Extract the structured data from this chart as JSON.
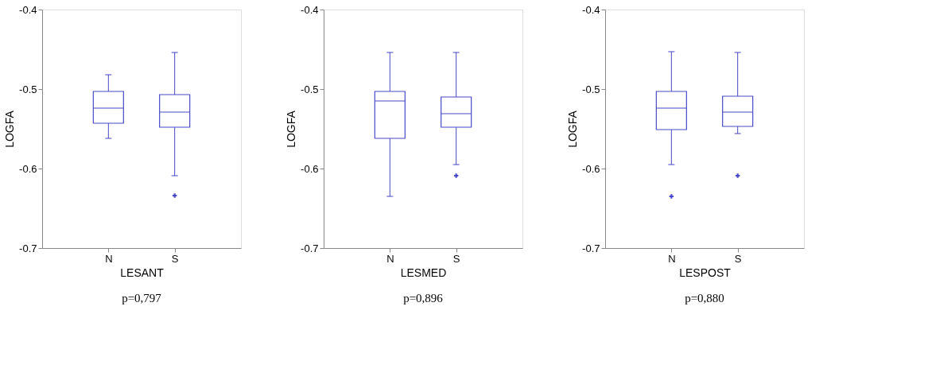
{
  "chart_data": [
    {
      "type": "box",
      "xlabel": "LESANT",
      "ylabel": "LOGFA",
      "categories": [
        "N",
        "S"
      ],
      "ylim": [
        -0.7,
        -0.4
      ],
      "yticks": [
        -0.7,
        -0.6,
        -0.5,
        -0.4
      ],
      "grid": false,
      "annotations": [
        "p=0,797"
      ],
      "series": [
        {
          "color": "#4a4ac8",
          "boxes": [
            {
              "low": -0.562,
              "q1": -0.543,
              "median": -0.524,
              "q3": -0.503,
              "high": -0.482
            },
            {
              "low": -0.609,
              "q1": -0.548,
              "median": -0.529,
              "q3": -0.507,
              "high": -0.454,
              "outliers": [
                -0.634
              ]
            }
          ]
        }
      ]
    },
    {
      "type": "box",
      "xlabel": "LESMED",
      "ylabel": "LOGFA",
      "categories": [
        "N",
        "S"
      ],
      "ylim": [
        -0.7,
        -0.4
      ],
      "yticks": [
        -0.7,
        -0.6,
        -0.5,
        -0.4
      ],
      "grid": false,
      "annotations": [
        "p=0,896"
      ],
      "series": [
        {
          "color": "#4a4ac8",
          "boxes": [
            {
              "low": -0.635,
              "q1": -0.562,
              "median": -0.515,
              "q3": -0.503,
              "high": -0.454
            },
            {
              "low": -0.595,
              "q1": -0.548,
              "median": -0.531,
              "q3": -0.51,
              "high": -0.454,
              "outliers": [
                -0.609
              ]
            }
          ]
        }
      ]
    },
    {
      "type": "box",
      "xlabel": "LESPOST",
      "ylabel": "LOGFA",
      "categories": [
        "N",
        "S"
      ],
      "ylim": [
        -0.7,
        -0.4
      ],
      "yticks": [
        -0.7,
        -0.6,
        -0.5,
        -0.4
      ],
      "grid": false,
      "annotations": [
        "p=0,880"
      ],
      "series": [
        {
          "color": "#4a4ac8",
          "boxes": [
            {
              "low": -0.595,
              "q1": -0.551,
              "median": -0.524,
              "q3": -0.503,
              "high": -0.453,
              "outliers": [
                -0.635
              ]
            },
            {
              "low": -0.556,
              "q1": -0.547,
              "median": -0.529,
              "q3": -0.509,
              "high": -0.454,
              "outliers": [
                -0.609
              ]
            }
          ]
        }
      ]
    }
  ]
}
